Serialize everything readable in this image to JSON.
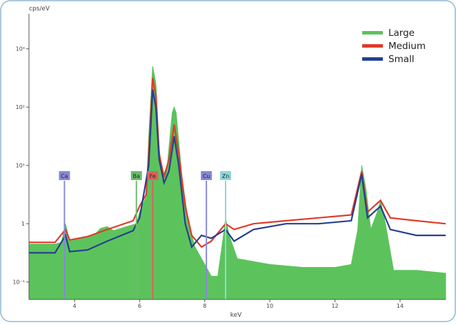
{
  "chart_data": {
    "type": "line",
    "ylabel": "cps/eV",
    "xlabel": "keV",
    "xlim": [
      2.6,
      15.4
    ],
    "ylim_log10": [
      -1.3,
      3.6
    ],
    "x_ticks": [
      {
        "value": 4,
        "label": "4"
      },
      {
        "value": 6,
        "label": "6"
      },
      {
        "value": 8,
        "label": "8"
      },
      {
        "value": 10,
        "label": "10"
      },
      {
        "value": 12,
        "label": "12"
      },
      {
        "value": 14,
        "label": "14"
      }
    ],
    "y_ticks": [
      {
        "value": -1,
        "label": "10⁻¹"
      },
      {
        "value": 0,
        "label": "1"
      },
      {
        "value": 1,
        "label": "10¹"
      },
      {
        "value": 2,
        "label": "10²"
      },
      {
        "value": 3,
        "label": "10³"
      }
    ],
    "series": [
      {
        "name": "Large",
        "color": "#5cc35c",
        "points": [
          [
            2.6,
            -0.35
          ],
          [
            3.4,
            -0.35
          ],
          [
            3.6,
            -0.32
          ],
          [
            3.72,
            0.0
          ],
          [
            3.85,
            -0.3
          ],
          [
            4.2,
            -0.25
          ],
          [
            4.6,
            -0.2
          ],
          [
            4.8,
            -0.08
          ],
          [
            5.0,
            -0.05
          ],
          [
            5.2,
            -0.12
          ],
          [
            5.6,
            -0.05
          ],
          [
            5.9,
            0.0
          ],
          [
            6.0,
            0.2
          ],
          [
            6.15,
            0.4
          ],
          [
            6.2,
            0.45
          ],
          [
            6.28,
            1.5
          ],
          [
            6.4,
            2.7
          ],
          [
            6.5,
            2.4
          ],
          [
            6.6,
            1.3
          ],
          [
            6.7,
            0.8
          ],
          [
            6.85,
            1.0
          ],
          [
            7.0,
            1.9
          ],
          [
            7.06,
            2.0
          ],
          [
            7.12,
            1.9
          ],
          [
            7.3,
            0.8
          ],
          [
            7.5,
            0.0
          ],
          [
            7.7,
            -0.4
          ],
          [
            8.0,
            -0.7
          ],
          [
            8.2,
            -0.9
          ],
          [
            8.4,
            -0.9
          ],
          [
            8.55,
            -0.3
          ],
          [
            8.64,
            0.1
          ],
          [
            8.75,
            -0.2
          ],
          [
            9.0,
            -0.6
          ],
          [
            10.0,
            -0.7
          ],
          [
            11.0,
            -0.75
          ],
          [
            12.0,
            -0.75
          ],
          [
            12.5,
            -0.7
          ],
          [
            12.7,
            -0.1
          ],
          [
            12.82,
            1.0
          ],
          [
            12.95,
            0.6
          ],
          [
            13.1,
            -0.1
          ],
          [
            13.3,
            0.2
          ],
          [
            13.4,
            0.4
          ],
          [
            13.55,
            0.0
          ],
          [
            13.8,
            -0.8
          ],
          [
            14.5,
            -0.8
          ],
          [
            15.4,
            -0.85
          ]
        ]
      },
      {
        "name": "Medium",
        "color": "#e03a2a",
        "points": [
          [
            2.6,
            -0.32
          ],
          [
            3.4,
            -0.32
          ],
          [
            3.72,
            -0.1
          ],
          [
            3.85,
            -0.28
          ],
          [
            4.4,
            -0.22
          ],
          [
            5.0,
            -0.1
          ],
          [
            5.8,
            0.05
          ],
          [
            6.0,
            0.3
          ],
          [
            6.2,
            0.5
          ],
          [
            6.28,
            1.2
          ],
          [
            6.4,
            2.5
          ],
          [
            6.5,
            2.2
          ],
          [
            6.6,
            1.2
          ],
          [
            6.75,
            0.8
          ],
          [
            6.9,
            1.1
          ],
          [
            7.06,
            1.7
          ],
          [
            7.2,
            1.2
          ],
          [
            7.4,
            0.3
          ],
          [
            7.6,
            -0.2
          ],
          [
            7.9,
            -0.4
          ],
          [
            8.2,
            -0.3
          ],
          [
            8.64,
            0.0
          ],
          [
            8.9,
            -0.1
          ],
          [
            9.5,
            0.0
          ],
          [
            10.5,
            0.05
          ],
          [
            11.5,
            0.1
          ],
          [
            12.5,
            0.15
          ],
          [
            12.82,
            0.9
          ],
          [
            13.0,
            0.2
          ],
          [
            13.4,
            0.4
          ],
          [
            13.7,
            0.1
          ],
          [
            14.5,
            0.05
          ],
          [
            15.4,
            0.0
          ]
        ]
      },
      {
        "name": "Small",
        "color": "#243f8f",
        "points": [
          [
            2.6,
            -0.5
          ],
          [
            3.4,
            -0.5
          ],
          [
            3.72,
            -0.2
          ],
          [
            3.85,
            -0.48
          ],
          [
            4.4,
            -0.45
          ],
          [
            5.0,
            -0.3
          ],
          [
            5.8,
            -0.12
          ],
          [
            6.0,
            0.1
          ],
          [
            6.28,
            1.0
          ],
          [
            6.4,
            2.3
          ],
          [
            6.5,
            2.0
          ],
          [
            6.6,
            1.1
          ],
          [
            6.75,
            0.7
          ],
          [
            6.9,
            0.9
          ],
          [
            7.06,
            1.5
          ],
          [
            7.2,
            1.0
          ],
          [
            7.4,
            0.0
          ],
          [
            7.6,
            -0.4
          ],
          [
            7.9,
            -0.2
          ],
          [
            8.2,
            -0.25
          ],
          [
            8.64,
            -0.1
          ],
          [
            8.9,
            -0.3
          ],
          [
            9.5,
            -0.1
          ],
          [
            10.5,
            0.0
          ],
          [
            11.5,
            0.0
          ],
          [
            12.5,
            0.05
          ],
          [
            12.82,
            0.85
          ],
          [
            13.0,
            0.1
          ],
          [
            13.4,
            0.3
          ],
          [
            13.7,
            -0.1
          ],
          [
            14.5,
            -0.2
          ],
          [
            15.4,
            -0.2
          ]
        ]
      }
    ],
    "annotations": [
      {
        "label": "Ca",
        "x": 3.69,
        "color": "#8888d8"
      },
      {
        "label": "Ba",
        "x": 5.9,
        "color": "#6dbb6d"
      },
      {
        "label": "Fe",
        "x": 6.4,
        "color": "#e06060"
      },
      {
        "label": "Cu",
        "x": 8.05,
        "color": "#8888d8"
      },
      {
        "label": "Zn",
        "x": 8.64,
        "color": "#8fd8d8"
      }
    ],
    "legend_position": "top-right"
  }
}
